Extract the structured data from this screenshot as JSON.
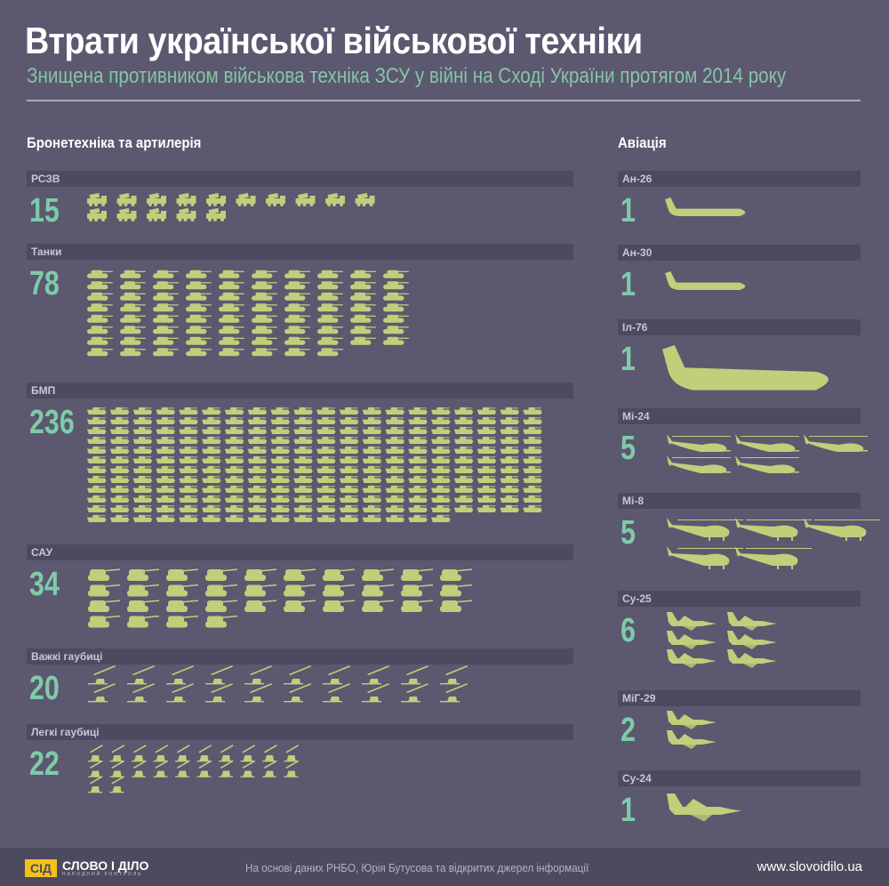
{
  "title": "Втрати української військової техніки",
  "subtitle": "Знищена противником військова техніка ЗСУ у війні на Сході України протягом 2014 року",
  "colors": {
    "background": "#5b5870",
    "bar": "#4c4961",
    "icon": "#bfcf7a",
    "number": "#7ecba8",
    "subtitle": "#86c5a4"
  },
  "chart_data": {
    "type": "pictogram",
    "groups": [
      {
        "title": "Бронетехніка та артилерія",
        "categories": [
          "РСЗВ",
          "Танки",
          "БМП",
          "САУ",
          "Важкі гаубиці",
          "Легкі гаубиці"
        ],
        "values": [
          15,
          78,
          236,
          34,
          20,
          22
        ],
        "icons": [
          "mlrs-icon",
          "tank-icon",
          "ifv-icon",
          "spg-icon",
          "heavy-howitzer-icon",
          "light-howitzer-icon"
        ]
      },
      {
        "title": "Авіація",
        "categories": [
          "Ан-26",
          "Ан-30",
          "Іл-76",
          "Мі-24",
          "Мі-8",
          "Су-25",
          "МіГ-29",
          "Су-24"
        ],
        "values": [
          1,
          1,
          1,
          5,
          5,
          6,
          2,
          1
        ],
        "icons": [
          "transport-plane-icon",
          "transport-plane-icon",
          "heavy-transport-plane-icon",
          "attack-helicopter-icon",
          "transport-helicopter-icon",
          "jet-icon",
          "jet-icon",
          "jet-icon"
        ]
      }
    ]
  },
  "footer": {
    "logo_mark": "СІД",
    "logo_name": "СЛОВО І ДІЛО",
    "logo_sub": "НАРОДНИЙ КОНТРОЛЬ",
    "source": "На основі даних РНБО, Юрія Бутусова та відкритих джерел інформації",
    "site": "www.slovoidilo.ua"
  }
}
